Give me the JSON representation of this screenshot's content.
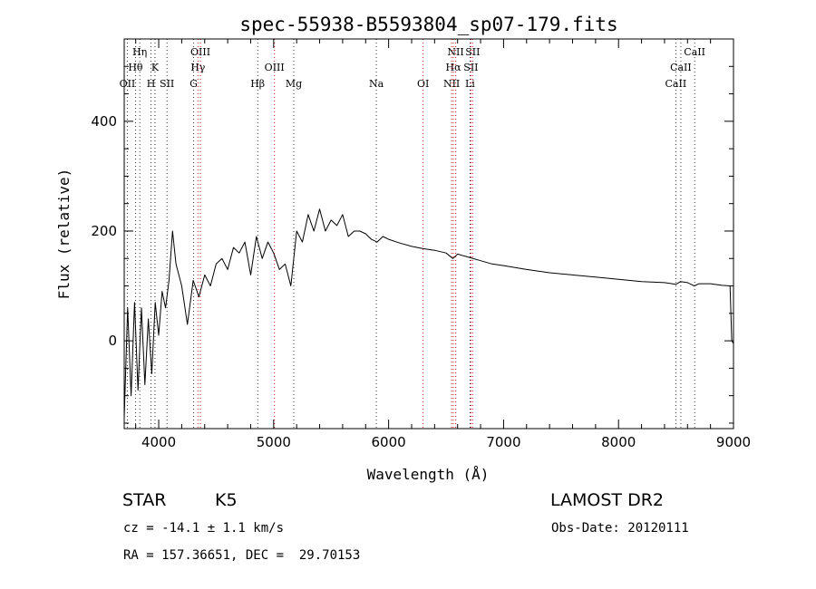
{
  "chart_data": {
    "type": "line",
    "title": "spec-55938-B5593804_sp07-179.fits",
    "xlabel": "Wavelength (Å)",
    "ylabel": "Flux (relative)",
    "xlim": [
      3700,
      9000
    ],
    "ylim": [
      -160,
      550
    ],
    "x_ticks": [
      4000,
      5000,
      6000,
      7000,
      8000,
      9000
    ],
    "y_ticks": [
      0,
      200,
      400
    ],
    "grid": false,
    "series": [
      {
        "color": "#000000",
        "x": [
          3700,
          3730,
          3760,
          3790,
          3820,
          3850,
          3880,
          3910,
          3940,
          3970,
          4000,
          4030,
          4060,
          4090,
          4120,
          4150,
          4200,
          4250,
          4300,
          4350,
          4400,
          4450,
          4500,
          4550,
          4600,
          4650,
          4700,
          4750,
          4800,
          4850,
          4900,
          4950,
          5000,
          5050,
          5100,
          5150,
          5200,
          5250,
          5300,
          5350,
          5400,
          5450,
          5500,
          5550,
          5600,
          5650,
          5700,
          5750,
          5800,
          5850,
          5900,
          5950,
          6000,
          6100,
          6200,
          6300,
          6400,
          6500,
          6560,
          6600,
          6700,
          6800,
          6900,
          7000,
          7200,
          7400,
          7600,
          7800,
          8000,
          8200,
          8400,
          8500,
          8540,
          8600,
          8660,
          8700,
          8800,
          8900,
          8970,
          8985,
          9000
        ],
        "y": [
          -140,
          60,
          -100,
          70,
          -90,
          60,
          -80,
          40,
          -60,
          70,
          10,
          90,
          60,
          110,
          200,
          140,
          100,
          30,
          110,
          80,
          120,
          100,
          140,
          150,
          130,
          170,
          160,
          180,
          120,
          190,
          150,
          180,
          160,
          130,
          140,
          100,
          200,
          180,
          230,
          200,
          240,
          200,
          220,
          210,
          230,
          190,
          200,
          200,
          195,
          185,
          180,
          190,
          185,
          178,
          172,
          168,
          165,
          160,
          150,
          158,
          152,
          146,
          140,
          137,
          130,
          124,
          120,
          116,
          112,
          108,
          106,
          103,
          108,
          106,
          100,
          104,
          104,
          101,
          100,
          0,
          -5
        ]
      }
    ],
    "line_labels": [
      {
        "text": "OII",
        "x": 3727
      },
      {
        "text": "Hθ",
        "x": 3798
      },
      {
        "text": "Hη",
        "x": 3835
      },
      {
        "text": "H",
        "x": 3933
      },
      {
        "text": "K",
        "x": 3968
      },
      {
        "text": "SII",
        "x": 4072
      },
      {
        "text": "G",
        "x": 4304
      },
      {
        "text": "Hγ",
        "x": 4341
      },
      {
        "text": "OIII",
        "x": 4363
      },
      {
        "text": "Hβ",
        "x": 4861
      },
      {
        "text": "OIII",
        "x": 5007
      },
      {
        "text": "Mg",
        "x": 5175
      },
      {
        "text": "Na",
        "x": 5893
      },
      {
        "text": "OI",
        "x": 6300
      },
      {
        "text": "NII",
        "x": 6548
      },
      {
        "text": "Hα",
        "x": 6563
      },
      {
        "text": "NII",
        "x": 6583
      },
      {
        "text": "Li",
        "x": 6708
      },
      {
        "text": "SII",
        "x": 6716
      },
      {
        "text": "SII",
        "x": 6731
      },
      {
        "text": "CaII",
        "x": 8498
      },
      {
        "text": "CaII",
        "x": 8542
      },
      {
        "text": "CaII",
        "x": 8662
      }
    ],
    "red_lines": [
      4341,
      4363,
      5007,
      6300,
      6548,
      6563,
      6583,
      6716,
      6731
    ],
    "black_lines": [
      3727,
      3798,
      3835,
      3933,
      3968,
      4072,
      4304,
      4861,
      5175,
      5893,
      6708,
      8498,
      8542,
      8662
    ]
  },
  "info": {
    "object_class": "STAR",
    "subclass": "K5",
    "survey": "LAMOST DR2",
    "velocity": "cz = -14.1 ± 1.1 km/s",
    "obs_date": "Obs-Date: 20120111",
    "coords": "RA = 157.36651, DEC =  29.70153"
  }
}
